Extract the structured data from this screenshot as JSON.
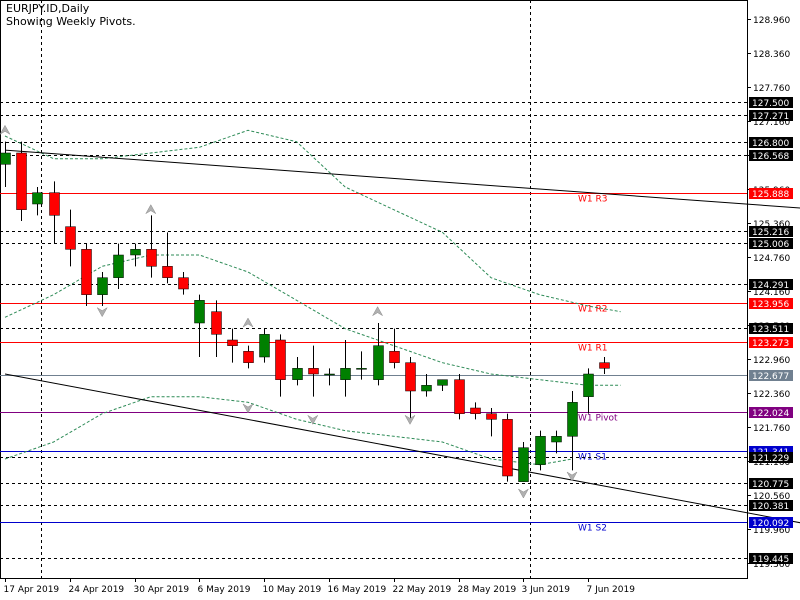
{
  "header": {
    "symbol": "EURJPY.ID,Daily",
    "subtitle": "Showing Weekly Pivots."
  },
  "colors": {
    "up": "#008000",
    "down": "#ff0000",
    "pivot_resistance": "#ff0000",
    "pivot_central": "#800080",
    "pivot_support": "#0000cc",
    "current_price": "#708090",
    "band": "#2e8b57",
    "trendline": "#000000",
    "label_bg": "#000000",
    "label_fg": "#ffffff"
  },
  "chart_data": {
    "type": "candlestick",
    "price_range": [
      119.1,
      129.3
    ],
    "x_ticks": [
      "17 Apr 2019",
      "24 Apr 2019",
      "30 Apr 2019",
      "6 May 2019",
      "10 May 2019",
      "16 May 2019",
      "22 May 2019",
      "28 May 2019",
      "3 Jun 2019",
      "7 Jun 2019"
    ],
    "price_ticks": [
      128.96,
      128.36,
      127.76,
      127.16,
      126.56,
      125.96,
      125.36,
      124.76,
      124.16,
      123.56,
      122.96,
      122.36,
      121.76,
      121.16,
      120.56,
      119.96,
      119.36
    ],
    "candles": [
      {
        "o": 126.4,
        "h": 126.8,
        "l": 126.0,
        "c": 126.6
      },
      {
        "o": 126.6,
        "h": 126.8,
        "l": 125.4,
        "c": 125.6
      },
      {
        "o": 125.7,
        "h": 126.0,
        "l": 125.5,
        "c": 125.9
      },
      {
        "o": 125.9,
        "h": 126.1,
        "l": 125.0,
        "c": 125.5
      },
      {
        "o": 125.3,
        "h": 125.6,
        "l": 124.6,
        "c": 124.9
      },
      {
        "o": 124.9,
        "h": 125.0,
        "l": 123.9,
        "c": 124.1
      },
      {
        "o": 124.1,
        "h": 124.5,
        "l": 123.9,
        "c": 124.4
      },
      {
        "o": 124.4,
        "h": 125.0,
        "l": 124.2,
        "c": 124.8
      },
      {
        "o": 124.8,
        "h": 125.0,
        "l": 124.6,
        "c": 124.9
      },
      {
        "o": 124.9,
        "h": 125.5,
        "l": 124.4,
        "c": 124.6
      },
      {
        "o": 124.6,
        "h": 125.2,
        "l": 124.3,
        "c": 124.4
      },
      {
        "o": 124.4,
        "h": 124.5,
        "l": 124.1,
        "c": 124.2
      },
      {
        "o": 123.6,
        "h": 124.1,
        "l": 123.0,
        "c": 124.0
      },
      {
        "o": 123.8,
        "h": 124.0,
        "l": 123.0,
        "c": 123.4
      },
      {
        "o": 123.3,
        "h": 123.5,
        "l": 122.9,
        "c": 123.2
      },
      {
        "o": 123.1,
        "h": 123.2,
        "l": 122.8,
        "c": 122.9
      },
      {
        "o": 123.0,
        "h": 123.5,
        "l": 122.9,
        "c": 123.4
      },
      {
        "o": 123.3,
        "h": 123.4,
        "l": 122.3,
        "c": 122.6
      },
      {
        "o": 122.6,
        "h": 123.0,
        "l": 122.5,
        "c": 122.8
      },
      {
        "o": 122.8,
        "h": 123.2,
        "l": 122.3,
        "c": 122.7
      },
      {
        "o": 122.7,
        "h": 122.8,
        "l": 122.5,
        "c": 122.7
      },
      {
        "o": 122.6,
        "h": 123.3,
        "l": 122.3,
        "c": 122.8
      },
      {
        "o": 122.8,
        "h": 123.1,
        "l": 122.6,
        "c": 122.8
      },
      {
        "o": 122.6,
        "h": 123.6,
        "l": 122.5,
        "c": 123.2
      },
      {
        "o": 123.1,
        "h": 123.5,
        "l": 122.8,
        "c": 122.9
      },
      {
        "o": 122.9,
        "h": 123.0,
        "l": 121.9,
        "c": 122.4
      },
      {
        "o": 122.4,
        "h": 122.7,
        "l": 122.3,
        "c": 122.5
      },
      {
        "o": 122.5,
        "h": 122.6,
        "l": 122.4,
        "c": 122.6
      },
      {
        "o": 122.6,
        "h": 122.7,
        "l": 121.9,
        "c": 122.0
      },
      {
        "o": 122.1,
        "h": 122.2,
        "l": 121.9,
        "c": 122.0
      },
      {
        "o": 122.0,
        "h": 122.1,
        "l": 121.6,
        "c": 121.9
      },
      {
        "o": 121.9,
        "h": 122.0,
        "l": 120.8,
        "c": 120.9
      },
      {
        "o": 120.8,
        "h": 121.5,
        "l": 120.8,
        "c": 121.4
      },
      {
        "o": 121.1,
        "h": 121.7,
        "l": 121.0,
        "c": 121.6
      },
      {
        "o": 121.5,
        "h": 121.7,
        "l": 121.3,
        "c": 121.6
      },
      {
        "o": 121.6,
        "h": 122.4,
        "l": 121.0,
        "c": 122.2
      },
      {
        "o": 122.3,
        "h": 122.8,
        "l": 122.0,
        "c": 122.7
      },
      {
        "o": 122.9,
        "h": 123.0,
        "l": 122.7,
        "c": 122.8
      }
    ],
    "horizontal_levels": [
      {
        "value": 127.5,
        "label": "127.500",
        "style": "dashed",
        "kind": "grid"
      },
      {
        "value": 127.271,
        "label": "127.271",
        "style": "dashed",
        "kind": "grid"
      },
      {
        "value": 126.8,
        "label": "126.800",
        "style": "dashed",
        "kind": "grid"
      },
      {
        "value": 126.568,
        "label": "126.568",
        "style": "dashed",
        "kind": "grid"
      },
      {
        "value": 125.888,
        "label": "125.888",
        "style": "solid",
        "kind": "resistance",
        "pivot_name": "W1 R3"
      },
      {
        "value": 125.216,
        "label": "125.216",
        "style": "dashed",
        "kind": "grid"
      },
      {
        "value": 125.006,
        "label": "125.006",
        "style": "dashed",
        "kind": "grid"
      },
      {
        "value": 124.291,
        "label": "124.291",
        "style": "dashed",
        "kind": "grid"
      },
      {
        "value": 123.956,
        "label": "123.956",
        "style": "solid",
        "kind": "resistance",
        "pivot_name": "W1 R2"
      },
      {
        "value": 123.511,
        "label": "123.511",
        "style": "dashed",
        "kind": "grid"
      },
      {
        "value": 123.273,
        "label": "123.273",
        "style": "solid",
        "kind": "resistance",
        "pivot_name": "W1 R1"
      },
      {
        "value": 122.677,
        "label": "122.677",
        "style": "solid",
        "kind": "current"
      },
      {
        "value": 122.024,
        "label": "122.024",
        "style": "solid",
        "kind": "central",
        "pivot_name": "W1 Pivot"
      },
      {
        "value": 121.341,
        "label": "121.341",
        "style": "solid",
        "kind": "support",
        "pivot_name": "W1 S1"
      },
      {
        "value": 121.229,
        "label": "121.229",
        "style": "dashed",
        "kind": "grid"
      },
      {
        "value": 120.775,
        "label": "120.775",
        "style": "dashed",
        "kind": "grid"
      },
      {
        "value": 120.381,
        "label": "120.381",
        "style": "dashed",
        "kind": "grid"
      },
      {
        "value": 120.092,
        "label": "120.092",
        "style": "solid",
        "kind": "support",
        "pivot_name": "W1 S2"
      },
      {
        "value": 119.445,
        "label": "119.445",
        "style": "dashed",
        "kind": "grid"
      }
    ],
    "trendlines": [
      {
        "from": {
          "bar": 0,
          "price": 126.65
        },
        "to": {
          "bar": 50.5,
          "price": 125.6
        }
      },
      {
        "from": {
          "bar": 0,
          "price": 122.7
        },
        "to": {
          "bar": 50.5,
          "price": 120.0
        }
      }
    ],
    "band_upper": [
      [
        0,
        126.9
      ],
      [
        3,
        126.5
      ],
      [
        6,
        126.5
      ],
      [
        9,
        126.6
      ],
      [
        12,
        126.7
      ],
      [
        15,
        127.0
      ],
      [
        18,
        126.8
      ],
      [
        21,
        126.0
      ],
      [
        24,
        125.6
      ],
      [
        27,
        125.2
      ],
      [
        30,
        124.4
      ],
      [
        33,
        124.1
      ],
      [
        36,
        123.9
      ],
      [
        38,
        123.8
      ]
    ],
    "band_middle": [
      [
        0,
        123.7
      ],
      [
        3,
        124.1
      ],
      [
        6,
        124.6
      ],
      [
        9,
        124.8
      ],
      [
        12,
        124.8
      ],
      [
        15,
        124.5
      ],
      [
        18,
        124.0
      ],
      [
        21,
        123.5
      ],
      [
        24,
        123.2
      ],
      [
        27,
        122.9
      ],
      [
        30,
        122.7
      ],
      [
        33,
        122.6
      ],
      [
        36,
        122.5
      ],
      [
        38,
        122.5
      ]
    ],
    "band_lower": [
      [
        0,
        121.2
      ],
      [
        3,
        121.5
      ],
      [
        6,
        122.0
      ],
      [
        9,
        122.3
      ],
      [
        12,
        122.3
      ],
      [
        15,
        122.2
      ],
      [
        18,
        121.9
      ],
      [
        21,
        121.7
      ],
      [
        24,
        121.6
      ],
      [
        27,
        121.5
      ],
      [
        30,
        121.2
      ],
      [
        33,
        121.1
      ],
      [
        35,
        121.2
      ]
    ],
    "fractals": [
      {
        "bar": 0,
        "price": 127.0,
        "dir": "up"
      },
      {
        "bar": 6,
        "price": 123.8,
        "dir": "down"
      },
      {
        "bar": 9,
        "price": 125.6,
        "dir": "up"
      },
      {
        "bar": 15,
        "price": 123.6,
        "dir": "up"
      },
      {
        "bar": 15,
        "price": 122.1,
        "dir": "down"
      },
      {
        "bar": 19,
        "price": 121.9,
        "dir": "down"
      },
      {
        "bar": 23,
        "price": 123.8,
        "dir": "up"
      },
      {
        "bar": 25,
        "price": 121.9,
        "dir": "down"
      },
      {
        "bar": 32,
        "price": 120.6,
        "dir": "down"
      },
      {
        "bar": 35,
        "price": 120.9,
        "dir": "down"
      }
    ],
    "vertical_separators": [
      2.2,
      32.4
    ]
  }
}
